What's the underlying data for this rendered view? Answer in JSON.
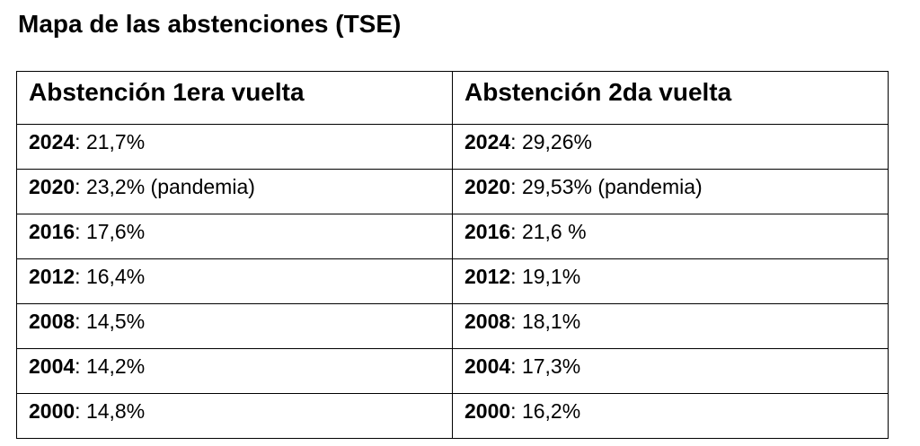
{
  "title": "Mapa de las abstenciones (TSE)",
  "table": {
    "headers": [
      "Abstención 1era vuelta",
      "Abstención 2da vuelta"
    ],
    "rows": [
      {
        "first_round": {
          "year": "2024",
          "value": ": 21,7%"
        },
        "second_round": {
          "year": "2024",
          "value": ": 29,26%"
        }
      },
      {
        "first_round": {
          "year": "2020",
          "value": ": 23,2% (pandemia)"
        },
        "second_round": {
          "year": "2020",
          "value": ": 29,53% (pandemia)"
        }
      },
      {
        "first_round": {
          "year": "2016",
          "value": ": 17,6%"
        },
        "second_round": {
          "year": "2016",
          "value": ": 21,6 %"
        }
      },
      {
        "first_round": {
          "year": "2012",
          "value": ": 16,4%"
        },
        "second_round": {
          "year": "2012",
          "value": ": 19,1%"
        }
      },
      {
        "first_round": {
          "year": "2008",
          "value": ": 14,5%"
        },
        "second_round": {
          "year": "2008",
          "value": ": 18,1%"
        }
      },
      {
        "first_round": {
          "year": "2004",
          "value": ": 14,2%"
        },
        "second_round": {
          "year": "2004",
          "value": ": 17,3%"
        }
      },
      {
        "first_round": {
          "year": "2000",
          "value": ": 14,8%"
        },
        "second_round": {
          "year": "2000",
          "value": ": 16,2%"
        }
      }
    ]
  }
}
